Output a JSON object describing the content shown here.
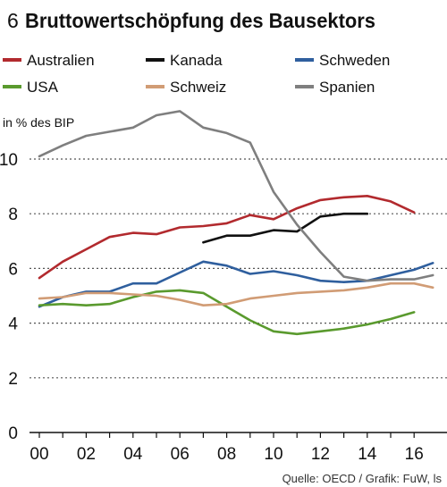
{
  "figure": {
    "number": "6",
    "title": "Bruttowertschöpfung des Bausektors",
    "source": "Quelle: OECD / Grafik: FuW, ls"
  },
  "chart_data": {
    "type": "line",
    "ylabel": "in % des BIP",
    "ylim": [
      0,
      12
    ],
    "xlim": [
      2000,
      2016.8
    ],
    "yticks": [
      0,
      2,
      4,
      6,
      8,
      10
    ],
    "xticks": [
      2000,
      2002,
      2004,
      2006,
      2008,
      2010,
      2012,
      2014,
      2016
    ],
    "xtick_labels": [
      "00",
      "02",
      "04",
      "06",
      "08",
      "10",
      "12",
      "14",
      "16"
    ],
    "grid": "horizontal dotted",
    "legend_position": "top, two rows",
    "series": [
      {
        "name": "Australien",
        "color": "#b22a2e",
        "x": [
          2000,
          2001,
          2002,
          2003,
          2004,
          2005,
          2006,
          2007,
          2008,
          2009,
          2010,
          2011,
          2012,
          2013,
          2014,
          2015,
          2016
        ],
        "y": [
          5.65,
          6.25,
          6.7,
          7.15,
          7.3,
          7.25,
          7.5,
          7.55,
          7.65,
          7.95,
          7.8,
          8.2,
          8.5,
          8.6,
          8.65,
          8.45,
          8.05
        ]
      },
      {
        "name": "Kanada",
        "color": "#111111",
        "x": [
          2007,
          2008,
          2009,
          2010,
          2011,
          2012,
          2013,
          2014
        ],
        "y": [
          6.95,
          7.2,
          7.2,
          7.4,
          7.35,
          7.9,
          8.0,
          8.0
        ]
      },
      {
        "name": "Schweden",
        "color": "#2f5f9e",
        "x": [
          2000,
          2001,
          2002,
          2003,
          2004,
          2005,
          2006,
          2007,
          2008,
          2009,
          2010,
          2011,
          2012,
          2013,
          2014,
          2015,
          2016,
          2016.8
        ],
        "y": [
          4.6,
          4.95,
          5.15,
          5.15,
          5.45,
          5.45,
          5.85,
          6.25,
          6.1,
          5.8,
          5.9,
          5.75,
          5.55,
          5.5,
          5.55,
          5.75,
          5.95,
          6.2
        ]
      },
      {
        "name": "USA",
        "color": "#5a9a2e",
        "x": [
          2000,
          2001,
          2002,
          2003,
          2004,
          2005,
          2006,
          2007,
          2008,
          2009,
          2010,
          2011,
          2012,
          2013,
          2014,
          2015,
          2016
        ],
        "y": [
          4.65,
          4.7,
          4.65,
          4.7,
          4.95,
          5.15,
          5.2,
          5.1,
          4.6,
          4.1,
          3.7,
          3.6,
          3.7,
          3.8,
          3.95,
          4.15,
          4.4
        ]
      },
      {
        "name": "Schweiz",
        "color": "#d19c75",
        "x": [
          2000,
          2001,
          2002,
          2003,
          2004,
          2005,
          2006,
          2007,
          2008,
          2009,
          2010,
          2011,
          2012,
          2013,
          2014,
          2015,
          2016,
          2016.8
        ],
        "y": [
          4.9,
          4.95,
          5.1,
          5.1,
          5.05,
          5.0,
          4.85,
          4.65,
          4.7,
          4.9,
          5.0,
          5.1,
          5.15,
          5.2,
          5.3,
          5.45,
          5.45,
          5.3
        ]
      },
      {
        "name": "Spanien",
        "color": "#7f7f7f",
        "x": [
          2000,
          2001,
          2002,
          2003,
          2004,
          2005,
          2006,
          2007,
          2008,
          2009,
          2010,
          2011,
          2012,
          2013,
          2014,
          2015,
          2016,
          2016.8
        ],
        "y": [
          10.1,
          10.5,
          10.85,
          11.0,
          11.15,
          11.6,
          11.75,
          11.15,
          10.95,
          10.6,
          8.8,
          7.6,
          6.6,
          5.7,
          5.55,
          5.6,
          5.6,
          5.75
        ]
      }
    ]
  }
}
